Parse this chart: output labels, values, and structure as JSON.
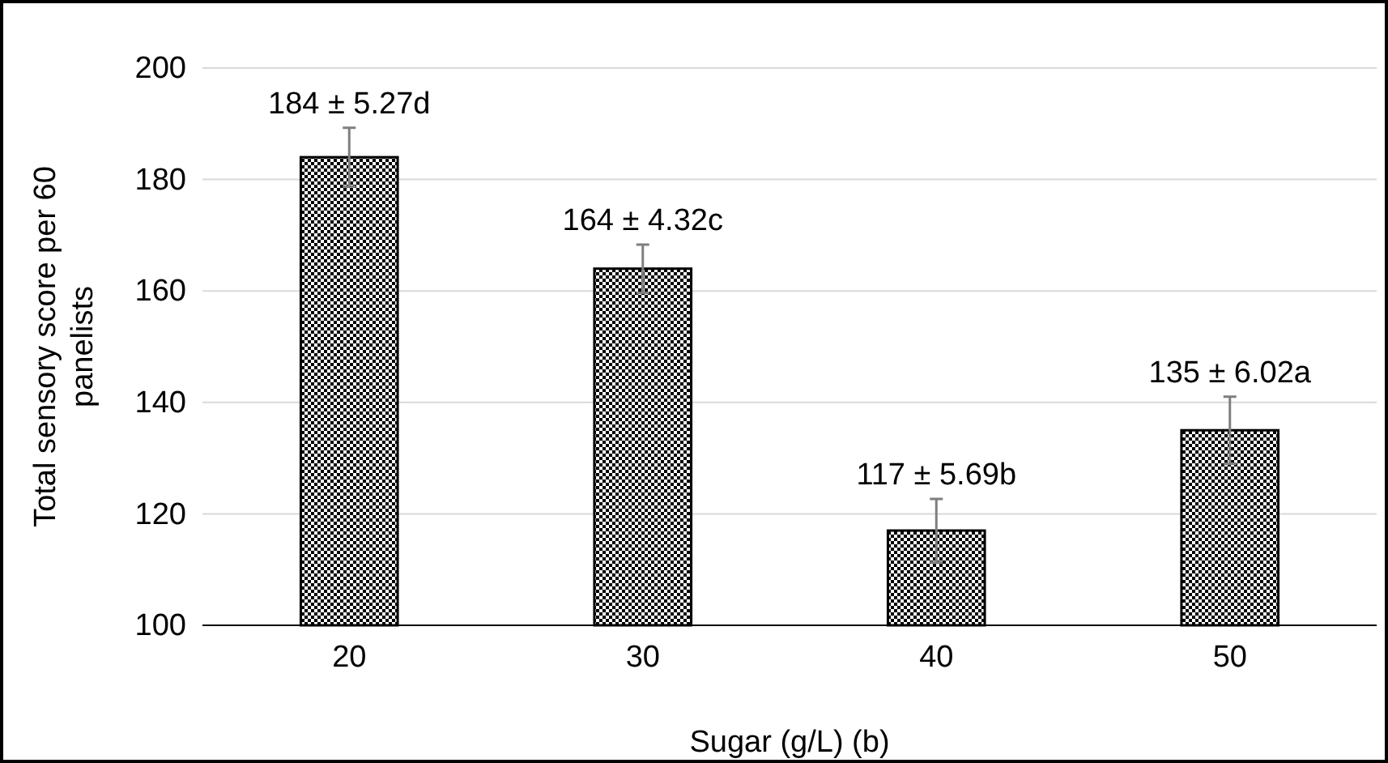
{
  "chart_data": {
    "type": "bar",
    "xlabel": "Sugar (g/L) (b)",
    "ylabel": "Total sensory score per 60 panelists",
    "categories": [
      "20",
      "30",
      "40",
      "50"
    ],
    "values": [
      184,
      164,
      117,
      135
    ],
    "errors": [
      5.27,
      4.32,
      5.69,
      6.02
    ],
    "value_labels": [
      "184 ± 5.27d",
      "164 ± 4.32c",
      "117 ± 5.69b",
      "135 ± 6.02a"
    ],
    "color": "#000000",
    "ylim": [
      100,
      200
    ],
    "yticks": [
      100,
      120,
      140,
      160,
      180,
      200
    ],
    "grid": "y"
  }
}
